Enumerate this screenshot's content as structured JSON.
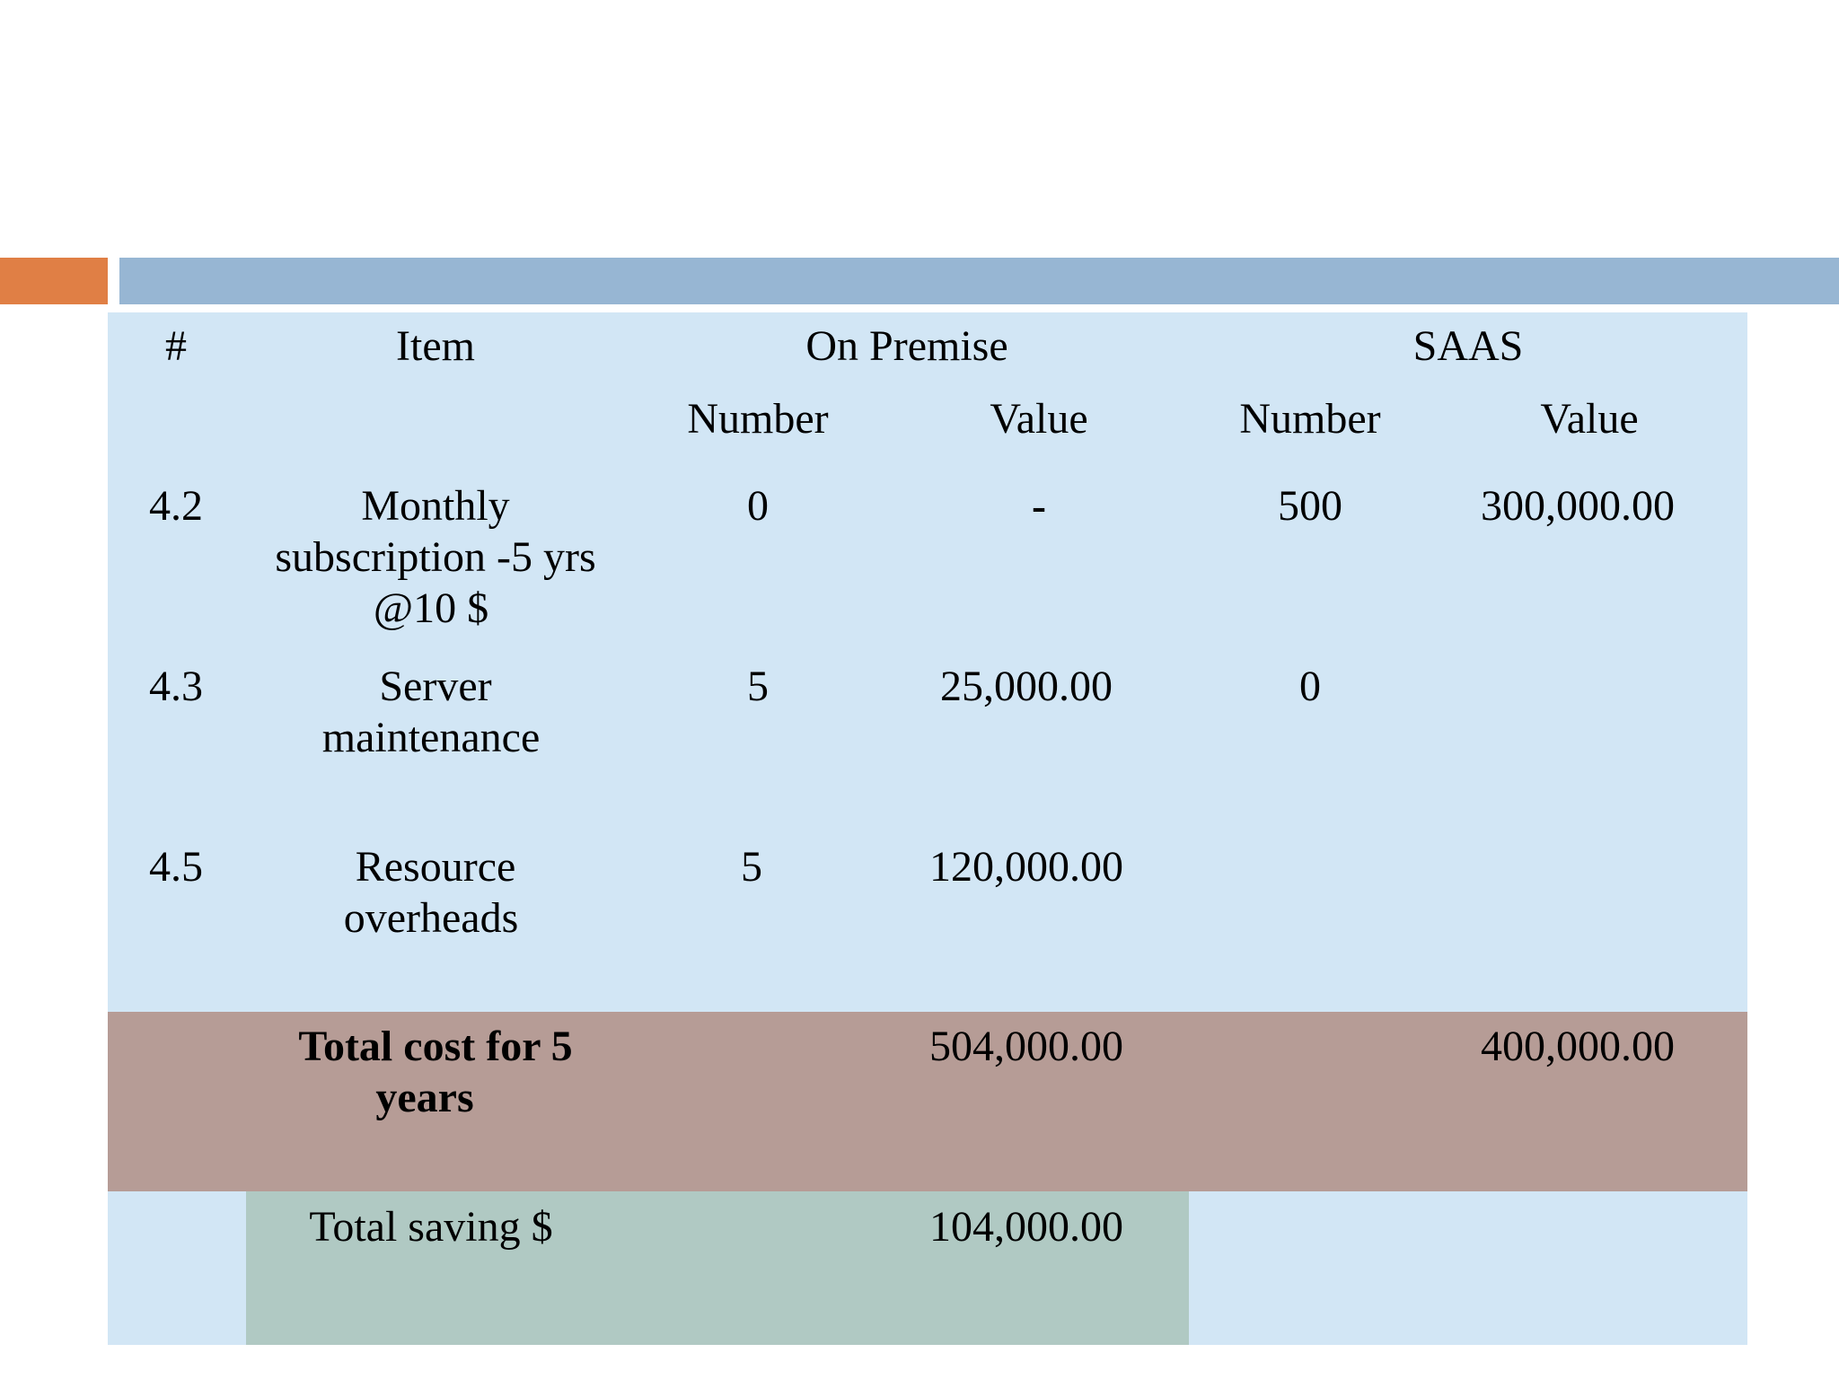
{
  "header": {
    "col_num": "#",
    "col_item": "Item",
    "col_onpremise": "On Premise",
    "col_saas": "SAAS",
    "sub_number_1": "Number",
    "sub_value_1": "Value",
    "sub_number_2": "Number",
    "sub_value_2": "Value"
  },
  "rows": [
    {
      "num": "4.2",
      "item_lines": [
        "Monthly",
        "subscription -5 yrs",
        "@10 $"
      ],
      "op_number": "0",
      "op_value": "-",
      "saas_number": "500",
      "saas_value": "300,000.00"
    },
    {
      "num": "4.3",
      "item_lines": [
        "Server",
        "maintenance"
      ],
      "op_number": "5",
      "op_value": "25,000.00",
      "saas_number": "0",
      "saas_value": ""
    },
    {
      "num": "4.5",
      "item_lines": [
        "Resource",
        "overheads"
      ],
      "op_number": "5",
      "op_value": "120,000.00",
      "saas_number": "",
      "saas_value": ""
    }
  ],
  "total": {
    "label_lines": [
      "Total cost for 5",
      "years"
    ],
    "op_value": "504,000.00",
    "saas_value": "400,000.00"
  },
  "saving": {
    "label": "Total saving $",
    "value": "104,000.00"
  },
  "colors": {
    "orange_bar": "#E07F45",
    "blue_bar": "#97B6D3",
    "table_bg": "#D2E6F5",
    "total_bg": "#B69C96",
    "saving_bg": "#B0C9C3"
  }
}
